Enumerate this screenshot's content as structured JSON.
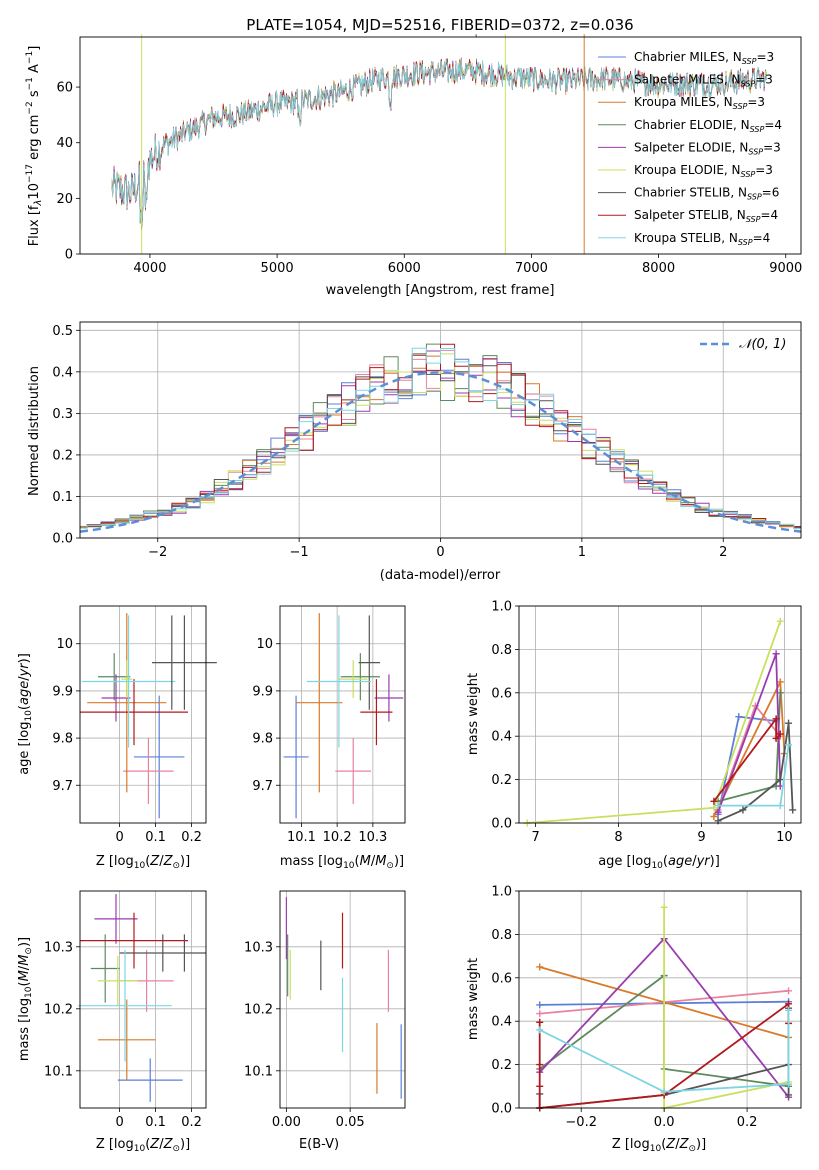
{
  "title": "PLATE=1054, MJD=52516, FIBERID=0372, z=0.036",
  "colors": {
    "Chabrier MILES": "#5b7fd8",
    "Salpeter MILES": "#e8829f",
    "Kroupa MILES": "#d97a2a",
    "Chabrier ELODIE": "#5d8a5f",
    "Salpeter ELODIE": "#9a3cb0",
    "Kroupa ELODIE": "#c8e060",
    "Chabrier STELIB": "#555555",
    "Salpeter STELIB": "#b0191e",
    "Kroupa STELIB": "#7fd6e3",
    "gauss": "#5b8fd6"
  },
  "chart_data": [
    {
      "type": "line",
      "xlabel": "wavelength [Angstrom, rest frame]",
      "ylabel": "Flux [f$_\\lambda$10$^{-17}$ erg cm$^{-2}$ s$^{-1}$ A$^{-1}$]",
      "ylabel_parts": [
        "Flux [f",
        "λ",
        "10",
        "−17",
        " erg cm",
        "−2",
        " s",
        "−1",
        " A",
        "−1",
        "]"
      ],
      "xlim": [
        3450,
        9120
      ],
      "ylim": [
        0,
        78
      ],
      "xticks": [
        4000,
        5000,
        6000,
        7000,
        8000,
        9000
      ],
      "yticks": [
        0,
        20,
        40,
        60
      ],
      "legend": [
        {
          "name": "Chabrier MILES",
          "n": "3"
        },
        {
          "name": "Salpeter MILES",
          "n": "3"
        },
        {
          "name": "Kroupa MILES",
          "n": "3"
        },
        {
          "name": "Chabrier ELODIE",
          "n": "4"
        },
        {
          "name": "Salpeter ELODIE",
          "n": "3"
        },
        {
          "name": "Kroupa ELODIE",
          "n": "3"
        },
        {
          "name": "Chabrier STELIB",
          "n": "6"
        },
        {
          "name": "Salpeter STELIB",
          "n": "4"
        },
        {
          "name": "Kroupa STELIB",
          "n": "4"
        }
      ],
      "legend_sub": "SSP",
      "legend_placement": "right",
      "continuum": [
        [
          3700,
          24
        ],
        [
          3850,
          22
        ],
        [
          3950,
          28
        ],
        [
          4000,
          34
        ],
        [
          4100,
          39
        ],
        [
          4300,
          44
        ],
        [
          4500,
          49
        ],
        [
          4700,
          50
        ],
        [
          5000,
          54
        ],
        [
          5200,
          55
        ],
        [
          5500,
          58
        ],
        [
          5800,
          63
        ],
        [
          6100,
          65
        ],
        [
          6500,
          66
        ],
        [
          6800,
          64
        ],
        [
          7200,
          62
        ],
        [
          7600,
          63
        ],
        [
          8000,
          61
        ],
        [
          8400,
          61
        ],
        [
          8850,
          63
        ]
      ],
      "spikes": [
        {
          "x": 3935,
          "y": 0,
          "series": "Kroupa ELODIE"
        },
        {
          "x": 6795,
          "y": 0,
          "series": "Kroupa ELODIE"
        },
        {
          "x": 7415,
          "y": 0,
          "series": "Kroupa MILES"
        },
        {
          "x": 6565,
          "y": 78,
          "series": "Chabrier STELIB"
        }
      ]
    },
    {
      "type": "histogram",
      "xlabel": "(data-model)/error",
      "ylabel": "Normed distribution",
      "xlim": [
        -2.55,
        2.55
      ],
      "ylim": [
        0,
        0.52
      ],
      "xticks": [
        -2,
        -1,
        0,
        1,
        2
      ],
      "yticks": [
        0.0,
        0.1,
        0.2,
        0.3,
        0.4,
        0.5
      ],
      "legend": [
        "$\\mathcal{N}(0,1)$"
      ],
      "legend_label": "𝒩(0, 1)",
      "legend_placement": "top-right",
      "bin_width": 0.1
    },
    {
      "type": "scatter",
      "xlabel": "Z [log$_{10}$(Z/Z$_\\odot$)]",
      "ylabel": "age  [log$_{10}$(age/yr)]",
      "xlim": [
        -0.11,
        0.24
      ],
      "ylim": [
        9.62,
        10.08
      ],
      "xticks": [
        0.0,
        0.1,
        0.2
      ],
      "yticks": [
        9.7,
        9.8,
        9.9,
        10.0
      ],
      "errorbars": [
        {
          "series": "Chabrier MILES",
          "x": 0.11,
          "xerr": 0.07,
          "y": 9.76,
          "yerr": 0.13
        },
        {
          "series": "Salpeter MILES",
          "x": 0.08,
          "xerr": 0.07,
          "y": 9.73,
          "yerr": 0.07
        },
        {
          "series": "Kroupa MILES",
          "x": 0.02,
          "xerr": 0.11,
          "y": 9.875,
          "yerr": 0.19
        },
        {
          "series": "Chabrier ELODIE",
          "x": -0.015,
          "xerr": 0.045,
          "y": 9.93,
          "yerr": 0.05
        },
        {
          "series": "Salpeter ELODIE",
          "x": -0.01,
          "xerr": 0.04,
          "y": 9.885,
          "yerr": 0.05
        },
        {
          "series": "Kroupa ELODIE",
          "x": 0.02,
          "xerr": 0.015,
          "y": 9.925,
          "yerr": 0.04
        },
        {
          "series": "Chabrier STELIB",
          "x": 0.18,
          "xerr": 0.09,
          "y": 9.96,
          "yerr": 0.1
        },
        {
          "series": "Salpeter STELIB",
          "x": 0.04,
          "xerr": 0.15,
          "y": 9.855,
          "yerr": 0.07
        },
        {
          "series": "Kroupa STELIB",
          "x": 0.025,
          "xerr": 0.13,
          "y": 9.92,
          "yerr": 0.14
        },
        {
          "series": "Chabrier STELIB",
          "x": 0.145,
          "xerr": 0.0,
          "y": 9.96,
          "yerr": 0.1
        }
      ]
    },
    {
      "type": "scatter",
      "xlabel": "mass [log$_{10}$(M/M$_\\odot$)]",
      "ylabel": "",
      "xlim": [
        10.04,
        10.39
      ],
      "ylim": [
        9.62,
        10.08
      ],
      "xticks": [
        10.1,
        10.2,
        10.3
      ],
      "xtick_labels": [
        "10.1",
        "10.2",
        "10.3"
      ],
      "yticks": [
        9.7,
        9.8,
        9.9,
        10.0
      ],
      "errorbars": [
        {
          "series": "Chabrier MILES",
          "x": 10.085,
          "xerr": 0.035,
          "y": 9.76,
          "yerr": 0.13
        },
        {
          "series": "Salpeter MILES",
          "x": 10.245,
          "xerr": 0.05,
          "y": 9.73,
          "yerr": 0.07
        },
        {
          "series": "Kroupa MILES",
          "x": 10.15,
          "xerr": 0.065,
          "y": 9.875,
          "yerr": 0.19
        },
        {
          "series": "Chabrier ELODIE",
          "x": 10.265,
          "xerr": 0.055,
          "y": 9.93,
          "yerr": 0.05
        },
        {
          "series": "Salpeter ELODIE",
          "x": 10.345,
          "xerr": 0.04,
          "y": 9.885,
          "yerr": 0.05
        },
        {
          "series": "Kroupa ELODIE",
          "x": 10.245,
          "xerr": 0.04,
          "y": 9.925,
          "yerr": 0.04
        },
        {
          "series": "Chabrier STELIB",
          "x": 10.29,
          "xerr": 0.03,
          "y": 9.96,
          "yerr": 0.1
        },
        {
          "series": "Salpeter STELIB",
          "x": 10.31,
          "xerr": 0.045,
          "y": 9.855,
          "yerr": 0.07
        },
        {
          "series": "Kroupa STELIB",
          "x": 10.205,
          "xerr": 0.09,
          "y": 9.92,
          "yerr": 0.14
        }
      ]
    },
    {
      "type": "line",
      "xlabel": "age  [log$_{10}$(age/yr)]",
      "ylabel": "mass weight",
      "xlim": [
        6.8,
        10.2
      ],
      "ylim": [
        0,
        1.0
      ],
      "xticks": [
        7,
        8,
        9,
        10
      ],
      "yticks": [
        0.0,
        0.2,
        0.4,
        0.6,
        0.8,
        1.0
      ],
      "series": [
        {
          "name": "Chabrier MILES",
          "x": [
            9.2,
            9.45,
            9.9
          ],
          "y": [
            0.04,
            0.49,
            0.47
          ]
        },
        {
          "name": "Salpeter MILES",
          "x": [
            9.2,
            9.65,
            9.95
          ],
          "y": [
            0.06,
            0.54,
            0.4
          ]
        },
        {
          "name": "Kroupa MILES",
          "x": [
            9.15,
            9.95,
            10.0
          ],
          "y": [
            0.03,
            0.65,
            0.32
          ]
        },
        {
          "name": "Chabrier ELODIE",
          "x": [
            9.2,
            9.9,
            9.95
          ],
          "y": [
            0.1,
            0.17,
            0.6
          ]
        },
        {
          "name": "Salpeter ELODIE",
          "x": [
            9.2,
            9.9,
            9.95
          ],
          "y": [
            0.05,
            0.78,
            0.17
          ]
        },
        {
          "name": "Kroupa ELODIE",
          "x": [
            6.9,
            9.15,
            9.95
          ],
          "y": [
            0.0,
            0.07,
            0.93
          ]
        },
        {
          "name": "Chabrier STELIB",
          "x": [
            9.2,
            9.5,
            9.95,
            10.05,
            10.1
          ],
          "y": [
            0.01,
            0.06,
            0.2,
            0.46,
            0.06
          ]
        },
        {
          "name": "Salpeter STELIB",
          "x": [
            9.15,
            9.9,
            9.9,
            9.95
          ],
          "y": [
            0.1,
            0.48,
            0.39,
            0.41
          ]
        },
        {
          "name": "Kroupa STELIB",
          "x": [
            9.2,
            9.95,
            10.05
          ],
          "y": [
            0.08,
            0.08,
            0.36
          ]
        }
      ]
    },
    {
      "type": "scatter",
      "xlabel": "Z [log$_{10}$(Z/Z$_\\odot$)]",
      "ylabel": "mass [log$_{10}$(M/M$_\\odot$)]",
      "xlim": [
        -0.11,
        0.24
      ],
      "ylim": [
        10.04,
        10.39
      ],
      "xticks": [
        0.0,
        0.1,
        0.2
      ],
      "yticks": [
        10.1,
        10.2,
        10.3
      ],
      "errorbars": [
        {
          "series": "Chabrier MILES",
          "x": 0.085,
          "xerr": 0.09,
          "y": 10.085,
          "yerr": 0.035
        },
        {
          "series": "Salpeter MILES",
          "x": 0.075,
          "xerr": 0.075,
          "y": 10.245,
          "yerr": 0.05
        },
        {
          "series": "Kroupa MILES",
          "x": 0.02,
          "xerr": 0.08,
          "y": 10.15,
          "yerr": 0.065
        },
        {
          "series": "Chabrier ELODIE",
          "x": -0.04,
          "xerr": 0.04,
          "y": 10.265,
          "yerr": 0.055
        },
        {
          "series": "Salpeter ELODIE",
          "x": -0.01,
          "xerr": 0.06,
          "y": 10.345,
          "yerr": 0.04
        },
        {
          "series": "Kroupa ELODIE",
          "x": -0.005,
          "xerr": 0.055,
          "y": 10.245,
          "yerr": 0.04
        },
        {
          "series": "Chabrier STELIB",
          "x": 0.12,
          "xerr": 0.12,
          "y": 10.29,
          "yerr": 0.03
        },
        {
          "series": "Salpeter STELIB",
          "x": 0.04,
          "xerr": 0.15,
          "y": 10.31,
          "yerr": 0.045
        },
        {
          "series": "Kroupa STELIB",
          "x": 0.015,
          "xerr": 0.13,
          "y": 10.205,
          "yerr": 0.09
        },
        {
          "series": "Chabrier STELIB",
          "x": 0.18,
          "xerr": 0.0,
          "y": 10.29,
          "yerr": 0.03
        }
      ]
    },
    {
      "type": "scatter",
      "xlabel": "E(B-V)",
      "ylabel": "",
      "xlim": [
        -0.005,
        0.093
      ],
      "ylim": [
        10.04,
        10.39
      ],
      "xticks": [
        0.0,
        0.05
      ],
      "xtick_labels": [
        "0.00",
        "0.05"
      ],
      "yticks": [
        10.1,
        10.2,
        10.3
      ],
      "errorbars": [
        {
          "series": "Chabrier MILES",
          "x": 0.09,
          "y": 10.115,
          "yerr": 0.06
        },
        {
          "series": "Salpeter MILES",
          "x": 0.08,
          "y": 10.245,
          "yerr": 0.05
        },
        {
          "series": "Kroupa MILES",
          "x": 0.071,
          "y": 10.12,
          "yerr": 0.057
        },
        {
          "series": "Chabrier ELODIE",
          "x": 0.001,
          "y": 10.27,
          "yerr": 0.05
        },
        {
          "series": "Salpeter ELODIE",
          "x": 0.0,
          "y": 10.33,
          "yerr": 0.05
        },
        {
          "series": "Kroupa ELODIE",
          "x": 0.003,
          "y": 10.255,
          "yerr": 0.04
        },
        {
          "series": "Chabrier STELIB",
          "x": 0.027,
          "y": 10.27,
          "yerr": 0.04
        },
        {
          "series": "Salpeter STELIB",
          "x": 0.044,
          "y": 10.31,
          "yerr": 0.045
        },
        {
          "series": "Kroupa STELIB",
          "x": 0.044,
          "y": 10.19,
          "yerr": 0.06
        }
      ]
    },
    {
      "type": "line",
      "xlabel": "Z [log$_{10}$(Z/Z$_\\odot$)]",
      "ylabel": "mass weight",
      "xlim": [
        -0.35,
        0.33
      ],
      "ylim": [
        0,
        1.0
      ],
      "xticks": [
        -0.2,
        0.0,
        0.2
      ],
      "xtick_labels": [
        "−0.2",
        "0.0",
        "0.2"
      ],
      "yticks": [
        0.0,
        0.2,
        0.4,
        0.6,
        0.8,
        1.0
      ],
      "series": [
        {
          "name": "Chabrier MILES",
          "x": [
            -0.3,
            0.3
          ],
          "y": [
            0.475,
            0.49
          ]
        },
        {
          "name": "Salpeter MILES",
          "x": [
            -0.3,
            0.3
          ],
          "y": [
            0.435,
            0.54
          ]
        },
        {
          "name": "Kroupa MILES",
          "x": [
            -0.3,
            0.3
          ],
          "y": [
            0.65,
            0.325
          ]
        },
        {
          "name": "Chabrier ELODIE",
          "x": [
            -0.3,
            0.0,
            0.0,
            0.3
          ],
          "y": [
            0.18,
            0.61,
            0.18,
            0.1
          ]
        },
        {
          "name": "Salpeter ELODIE",
          "x": [
            -0.3,
            0.0,
            0.3
          ],
          "y": [
            0.165,
            0.78,
            0.05
          ]
        },
        {
          "name": "Kroupa ELODIE",
          "x": [
            0.0,
            0.0,
            0.0,
            0.3
          ],
          "y": [
            0.925,
            0.07,
            0.0,
            0.12
          ]
        },
        {
          "name": "Chabrier STELIB",
          "x": [
            -0.3,
            -0.3,
            0.0,
            0.3,
            0.3,
            0.3
          ],
          "y": [
            0.065,
            0.0,
            0.06,
            0.2,
            0.46,
            0.06
          ]
        },
        {
          "name": "Salpeter STELIB",
          "x": [
            -0.3,
            -0.3,
            -0.3,
            -0.3,
            0.0,
            0.3,
            0.3
          ],
          "y": [
            0.395,
            0.2,
            0.1,
            0.0,
            0.06,
            0.48,
            0.39
          ]
        },
        {
          "name": "Kroupa STELIB",
          "x": [
            -0.3,
            0.0,
            0.3,
            0.3
          ],
          "y": [
            0.36,
            0.075,
            0.11,
            0.45
          ]
        }
      ]
    }
  ]
}
